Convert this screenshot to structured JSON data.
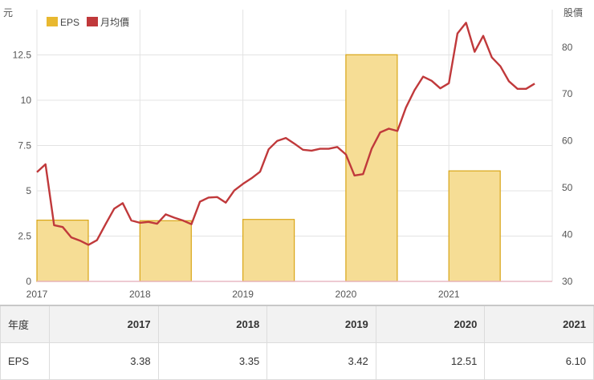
{
  "chart_data": {
    "type": "bar+line",
    "left_axis": {
      "unit_label": "元",
      "ticks": [
        "0",
        "2.5",
        "5",
        "7.5",
        "10",
        "12.5"
      ],
      "ylim": [
        0,
        15
      ]
    },
    "right_axis": {
      "unit_label": "股價",
      "ticks": [
        "30",
        "40",
        "50",
        "60",
        "70",
        "80"
      ],
      "ylim": [
        30,
        88
      ]
    },
    "x_ticks": [
      "2017",
      "2018",
      "2019",
      "2020",
      "2021"
    ],
    "legend": [
      {
        "name": "EPS",
        "color": "#e8b830"
      },
      {
        "name": "月均價",
        "color": "#c0393b"
      }
    ],
    "bars": {
      "name": "EPS",
      "categories": [
        "2017",
        "2018",
        "2019",
        "2020",
        "2021"
      ],
      "values": [
        3.38,
        3.35,
        3.42,
        12.51,
        6.1
      ],
      "fill": "#f6dd95",
      "stroke": "#d9a516"
    },
    "line": {
      "name": "月均價",
      "color": "#c0393b",
      "x_start": 2017.0,
      "x_step_months": 1,
      "values": [
        53.3,
        55,
        42,
        41.6,
        39.4,
        38.7,
        37.8,
        38.8,
        42.2,
        45.5,
        46.7,
        43,
        42.5,
        42.7,
        42.3,
        44.3,
        43.6,
        43,
        42.2,
        47,
        47.9,
        48,
        46.8,
        49.4,
        50.8,
        52,
        53.4,
        58.2,
        60,
        60.6,
        59.4,
        58.1,
        57.9,
        58.3,
        58.3,
        58.7,
        57.1,
        52.6,
        52.9,
        58.3,
        61.8,
        62.6,
        62.1,
        67.1,
        70.8,
        73.7,
        72.8,
        71.2,
        72.3,
        82.9,
        85.2,
        79,
        82.4,
        77.8,
        75.9,
        72.7,
        71.1,
        71.1,
        72.2
      ]
    }
  },
  "table": {
    "row_header_year": "年度",
    "row_header_eps": "EPS",
    "years": [
      "2017",
      "2018",
      "2019",
      "2020",
      "2021"
    ],
    "eps": [
      "3.38",
      "3.35",
      "3.42",
      "12.51",
      "6.10"
    ]
  }
}
